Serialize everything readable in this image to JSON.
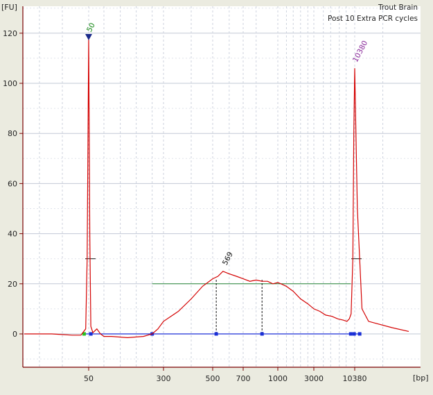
{
  "chart_data": {
    "type": "line",
    "title_lines": [
      "Trout Brain",
      "Post 10 Extra PCR cycles"
    ],
    "ylabel": "[FU]",
    "xlabel": "[bp]",
    "ylim": [
      -13,
      130
    ],
    "yticks": [
      0,
      20,
      40,
      60,
      80,
      100,
      120
    ],
    "x_scale": "nonlinear (Bioanalyzer ladder)",
    "xtick_labels": [
      "50",
      "300",
      "500",
      "700",
      "1000",
      "3000",
      "10380"
    ],
    "grid": true,
    "peak_labels": [
      {
        "label": "50",
        "x": 50,
        "y": 118
      },
      {
        "label": "569",
        "x": 569,
        "y": 25
      },
      {
        "label": "10380",
        "x": 10380,
        "y": 106
      }
    ],
    "region": {
      "start_bp": 225,
      "end_bp": 9200,
      "smear_mean_line_fu": 20,
      "dashed_markers_bp": [
        520,
        850
      ]
    },
    "series": [
      {
        "color": "#d40000",
        "x": [
          20,
          30,
          40,
          45,
          48,
          49,
          50,
          51,
          52,
          54,
          58,
          62,
          66,
          80,
          120,
          180,
          225,
          260,
          300,
          350,
          400,
          450,
          500,
          530,
          560,
          600,
          650,
          700,
          750,
          800,
          850,
          900,
          950,
          1000,
          1100,
          1300,
          1600,
          2000,
          2500,
          3000,
          3600,
          4300,
          5200,
          6200,
          7300,
          8200,
          8800,
          9300,
          9800,
          10100,
          10380,
          10600,
          11000,
          11600,
          12500,
          14000,
          16000
        ],
        "y": [
          0,
          0,
          -0.5,
          -0.5,
          2,
          30,
          118,
          40,
          3,
          0.5,
          2,
          0,
          -1,
          -1,
          -1.5,
          -1,
          0,
          2,
          5,
          9,
          14,
          19,
          22,
          23,
          25,
          24,
          23,
          22,
          21,
          21.5,
          21,
          21,
          20,
          20.5,
          20,
          19,
          17,
          14,
          12,
          10,
          9,
          7.5,
          7,
          6,
          5.5,
          5,
          6,
          8,
          30,
          80,
          106,
          50,
          10,
          5,
          4,
          2.5,
          1
        ]
      }
    ]
  }
}
